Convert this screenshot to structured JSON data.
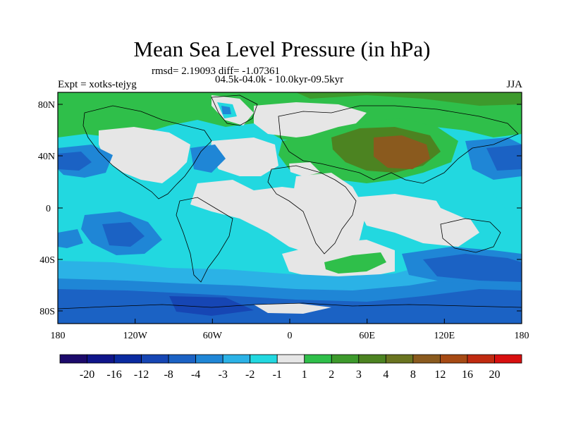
{
  "title": "Mean Sea Level Pressure (in hPa)",
  "stats_line": "rmsd= 2.19093 diff= -1.07361",
  "period_line": "04.5k-04.0k - 10.0kyr-09.5kyr",
  "experiment": "Expt = xotks-tejyg",
  "season": "JJA",
  "map": {
    "y_ticks": [
      "80N",
      "40N",
      "0",
      "40S",
      "80S"
    ],
    "x_ticks": [
      "180",
      "120W",
      "60W",
      "0",
      "60E",
      "120E",
      "180"
    ]
  },
  "colorbar": {
    "labels": [
      "-20",
      "-16",
      "-12",
      "-8",
      "-4",
      "-3",
      "-2",
      "-1",
      "1",
      "2",
      "3",
      "4",
      "8",
      "12",
      "16",
      "20"
    ],
    "colors": [
      "#1c0a6b",
      "#0f158a",
      "#0a2aa0",
      "#1646b4",
      "#1b62c4",
      "#1f86d6",
      "#2bb2e6",
      "#22d8e0",
      "#e6e6e6",
      "#2fbf4a",
      "#3d9a2c",
      "#4c8321",
      "#6a7420",
      "#8a5a1e",
      "#a64a14",
      "#c02a10",
      "#d80f0f"
    ]
  },
  "palette": {
    "neutral": "#e6e6e6",
    "cyan": "#22d8e0",
    "lightblue": "#2bb2e6",
    "blue": "#1f86d6",
    "midblue": "#1b62c4",
    "darkblue": "#1646b4",
    "navy": "#0a2aa0",
    "green": "#2fbf4a",
    "darkgreen": "#3d9a2c",
    "olive": "#4c8321",
    "brown": "#8a5a1e",
    "darkbrown": "#6a4a22"
  }
}
